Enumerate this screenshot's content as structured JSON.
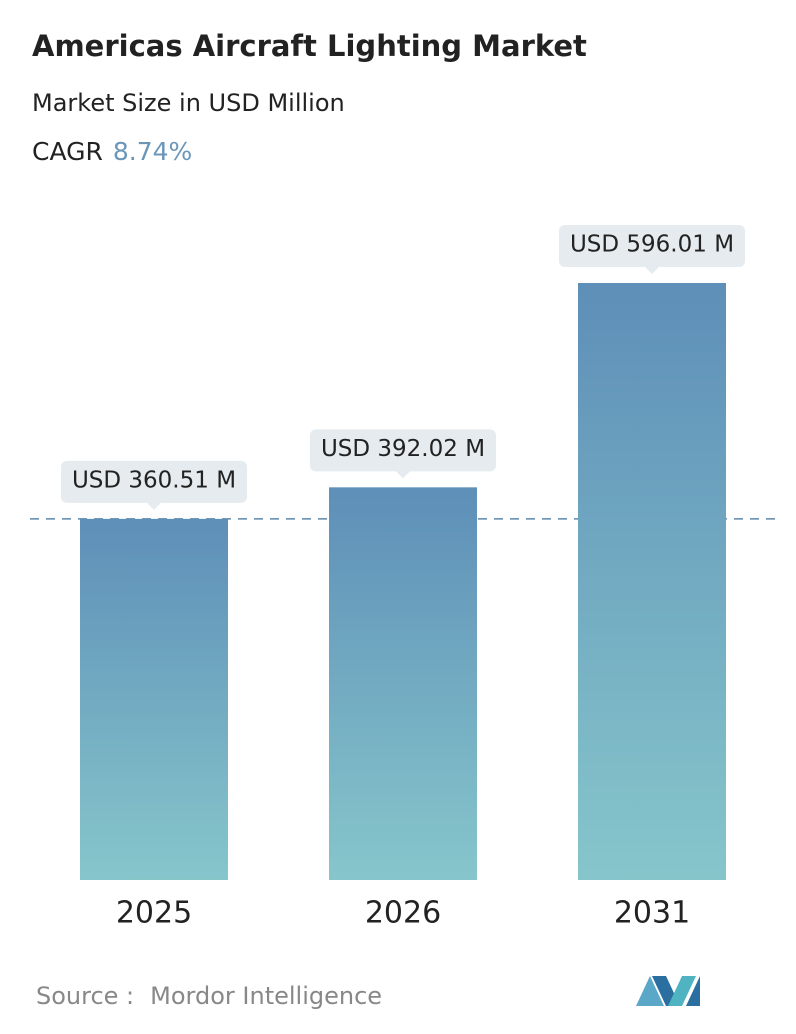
{
  "chart_data": {
    "type": "bar",
    "title": "Americas Aircraft Lighting Market",
    "subtitle": "Market Size in USD Million",
    "cagr_label": "CAGR",
    "cagr_value": "8.74%",
    "categories": [
      "2025",
      "2026",
      "2031"
    ],
    "values": [
      360.51,
      392.02,
      596.01
    ],
    "value_labels": [
      "USD 360.51 M",
      "USD 392.02 M",
      "USD 596.01 M"
    ],
    "colors": [
      "#5e8fb8",
      "#86c6cb"
    ],
    "source_label": "Source :",
    "source": "Mordor Intelligence"
  }
}
